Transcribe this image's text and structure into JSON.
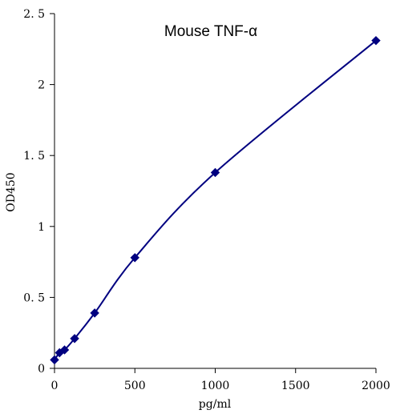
{
  "chart_data": {
    "type": "line",
    "title": "Mouse TNF-α",
    "xlabel": "pg/ml",
    "ylabel": "OD450",
    "xlim": [
      0,
      2000
    ],
    "ylim": [
      0,
      2.5
    ],
    "x_ticks": [
      0,
      500,
      1000,
      1500,
      2000
    ],
    "x_tick_labels": [
      "0",
      "500",
      "1000",
      "1500",
      "2000"
    ],
    "y_ticks": [
      0,
      0.5,
      1,
      1.5,
      2,
      2.5
    ],
    "y_tick_labels": [
      "0",
      "0. 5",
      "1",
      "1. 5",
      "2",
      "2. 5"
    ],
    "grid": false,
    "legend": "none",
    "series": [
      {
        "marker": "diamond",
        "color": "#000080",
        "smooth": true,
        "points": [
          {
            "x": 0,
            "y": 0.06
          },
          {
            "x": 31.25,
            "y": 0.11
          },
          {
            "x": 62.5,
            "y": 0.13
          },
          {
            "x": 125,
            "y": 0.21
          },
          {
            "x": 250,
            "y": 0.39
          },
          {
            "x": 500,
            "y": 0.78
          },
          {
            "x": 1000,
            "y": 1.38
          },
          {
            "x": 2000,
            "y": 2.31
          }
        ]
      }
    ]
  }
}
